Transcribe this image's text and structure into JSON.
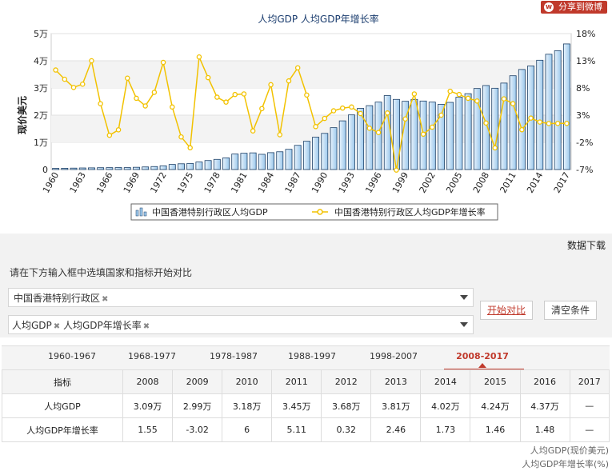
{
  "share_label": "分享到微博",
  "chart_data": {
    "type": "bar",
    "title": "人均GDP  人均GDP年增长率",
    "ylabel": "现价美元",
    "ylim": [
      0,
      50000
    ],
    "y2lim": [
      -7,
      18
    ],
    "y_ticks": [
      "0",
      "1万",
      "2万",
      "3万",
      "4万",
      "5万"
    ],
    "y2_ticks": [
      "-7%",
      "-2%",
      "3%",
      "8%",
      "13%",
      "18%"
    ],
    "x_tick_labels": [
      "1960",
      "1963",
      "1966",
      "1969",
      "1972",
      "1975",
      "1978",
      "1981",
      "1984",
      "1987",
      "1990",
      "1993",
      "1996",
      "1999",
      "2002",
      "2005",
      "2008",
      "2011",
      "2014",
      "2017"
    ],
    "legend_placement": "bottom",
    "grid": true,
    "years": [
      1960,
      1961,
      1962,
      1963,
      1964,
      1965,
      1966,
      1967,
      1968,
      1969,
      1970,
      1971,
      1972,
      1973,
      1974,
      1975,
      1976,
      1977,
      1978,
      1979,
      1980,
      1981,
      1982,
      1983,
      1984,
      1985,
      1986,
      1987,
      1988,
      1989,
      1990,
      1991,
      1992,
      1993,
      1994,
      1995,
      1996,
      1997,
      1998,
      1999,
      2000,
      2001,
      2002,
      2003,
      2004,
      2005,
      2006,
      2007,
      2008,
      2009,
      2010,
      2011,
      2012,
      2013,
      2014,
      2015,
      2016,
      2017
    ],
    "series": [
      {
        "name": "中国香港特别行政区人均GDP",
        "kind": "bar",
        "values": [
          430,
          470,
          520,
          580,
          620,
          680,
          700,
          720,
          710,
          830,
          960,
          1100,
          1370,
          1880,
          2120,
          2250,
          2770,
          3320,
          3740,
          4300,
          5700,
          5990,
          6130,
          5600,
          6210,
          6540,
          7440,
          8900,
          10400,
          11900,
          13300,
          15400,
          17900,
          20100,
          22500,
          23500,
          24800,
          27200,
          25800,
          25100,
          25800,
          25200,
          24800,
          24000,
          24700,
          26600,
          27900,
          29800,
          30900,
          29900,
          31800,
          34500,
          36800,
          38100,
          40200,
          42400,
          43700,
          46200
        ]
      },
      {
        "name": "中国香港特别行政区人均GDP年增长率",
        "kind": "line",
        "values": [
          11.3,
          9.6,
          8.1,
          8.7,
          13.0,
          5.1,
          -0.7,
          0.3,
          9.8,
          6.1,
          4.7,
          7.2,
          12.7,
          4.5,
          -1.0,
          -3.0,
          13.7,
          9.9,
          6.3,
          5.4,
          6.8,
          6.9,
          0.1,
          4.2,
          8.6,
          -0.6,
          9.3,
          11.7,
          6.7,
          0.9,
          2.4,
          3.8,
          4.3,
          4.5,
          3.3,
          0.6,
          -0.2,
          3.4,
          -7.1,
          2.3,
          6.9,
          -0.5,
          0.8,
          3.0,
          7.4,
          6.8,
          6.1,
          5.6,
          1.55,
          -3.02,
          6.0,
          5.11,
          0.32,
          2.46,
          1.73,
          1.46,
          1.48,
          1.48
        ]
      }
    ]
  },
  "download_label": "数据下载",
  "compare": {
    "hint": "请在下方输入框中选填国家和指标开始对比",
    "country_tag": "中国香港特别行政区",
    "indicator_tags": [
      "人均GDP",
      "人均GDP年增长率"
    ],
    "start_button": "开始对比",
    "clear_button": "清空条件"
  },
  "tabs": [
    "1960-1967",
    "1968-1977",
    "1978-1987",
    "1988-1997",
    "1998-2007",
    "2008-2017"
  ],
  "active_tab": 5,
  "table": {
    "header": [
      "指标",
      "2008",
      "2009",
      "2010",
      "2011",
      "2012",
      "2013",
      "2014",
      "2015",
      "2016",
      "2017"
    ],
    "rows": [
      [
        "人均GDP",
        "3.09万",
        "2.99万",
        "3.18万",
        "3.45万",
        "3.68万",
        "3.81万",
        "4.02万",
        "4.24万",
        "4.37万",
        "—"
      ],
      [
        "人均GDP年增长率",
        "1.55",
        "-3.02",
        "6",
        "5.11",
        "0.32",
        "2.46",
        "1.73",
        "1.46",
        "1.48",
        "—"
      ]
    ]
  },
  "footer_notes": [
    "人均GDP(现价美元)",
    "人均GDP年增长率(%)"
  ],
  "colors": {
    "bar_fill_top": "#cfe6f8",
    "bar_fill_bottom": "#9cc8ec",
    "bar_stroke": "#1c3f66",
    "line": "#f2c200",
    "accent": "#c0392b"
  }
}
